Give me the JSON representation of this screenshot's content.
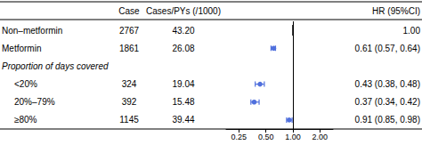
{
  "chart_data": {
    "type": "forest",
    "columns": [
      "Case",
      "Cases/PYs (/1000)",
      "HR (95%CI)"
    ],
    "categories": [
      "Non–metformin",
      "Metformin",
      "Proportion of days covered",
      "<20%",
      "20%–79%",
      "≥80%"
    ],
    "case": [
      "2767",
      "1861",
      null,
      "324",
      "392",
      "1145"
    ],
    "cpys": [
      "43.20",
      "26.08",
      null,
      "19.04",
      "15.48",
      "39.44"
    ],
    "values": [
      1.0,
      0.61,
      null,
      0.43,
      0.37,
      0.91
    ],
    "ci_lo": [
      1.0,
      0.57,
      null,
      0.38,
      0.34,
      0.85
    ],
    "ci_hi": [
      1.0,
      0.64,
      null,
      0.48,
      0.42,
      0.98
    ],
    "value_labels": [
      "1.00",
      "0.61 (0.57, 0.64)",
      null,
      "0.43 (0.38, 0.48)",
      "0.37 (0.34, 0.42)",
      "0.91 (0.85, 0.98)"
    ],
    "is_ref": [
      true,
      false,
      false,
      false,
      false,
      false
    ],
    "is_section": [
      false,
      false,
      true,
      false,
      false,
      false
    ],
    "indent": [
      false,
      false,
      false,
      true,
      true,
      true
    ],
    "ref_x": 1.0,
    "log": "x",
    "xlim": [
      0.18,
      2.8
    ],
    "xticks": [
      0.25,
      {
        "value": 0.5,
        "label": "0.50"
      },
      {
        "value": 1.0,
        "label": "1.00"
      },
      {
        "value": 2.0,
        "label": "2.00"
      }
    ],
    "grid": false
  }
}
